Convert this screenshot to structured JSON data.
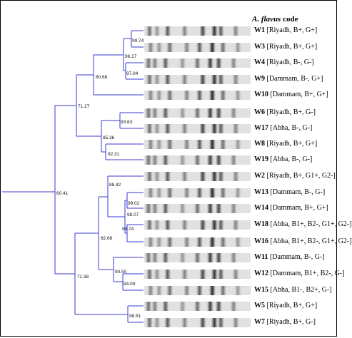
{
  "header": {
    "species": "A. flavus",
    "rest": "code"
  },
  "rows": [
    {
      "code": "W1",
      "desc": "[Riyadh, B+, G+]"
    },
    {
      "code": "W3",
      "desc": "[Riyadh, B+, G+]"
    },
    {
      "code": "W4",
      "desc": "[Riyadh, B-, G-]"
    },
    {
      "code": "W9",
      "desc": "[Dammam, B-, G+]"
    },
    {
      "code": "W10",
      "desc": "[Dammam, B+, G+]"
    },
    {
      "code": "W6",
      "desc": "[Riyadh, B+, G-]"
    },
    {
      "code": "W17",
      "desc": "[Abha, B-, G-]"
    },
    {
      "code": "W8",
      "desc": "[Riyadh, B+, G+]"
    },
    {
      "code": "W19",
      "desc": "[Abha, B-, G-]"
    },
    {
      "code": "W2",
      "desc": "[Riyadh, B+, G1+, G2-]"
    },
    {
      "code": "W13",
      "desc": "[Dammam, B-, G-]"
    },
    {
      "code": "W14",
      "desc": "[Dammam, B+, G+]"
    },
    {
      "code": "W18",
      "desc": "[Abha, B1+, B2-, G1+, G2-]"
    },
    {
      "code": "W16",
      "desc": "[Abha, B1+, B2-, G1+, G2-]"
    },
    {
      "code": "W11",
      "desc": "[Dammam, B-, G-]"
    },
    {
      "code": "W12",
      "desc": "[Dammam, B1+, B2-, G-]"
    },
    {
      "code": "W15",
      "desc": "[Abha, B1-, B2+, G-]"
    },
    {
      "code": "W5",
      "desc": "[Riyadh, B+, G+]"
    },
    {
      "code": "W7",
      "desc": "[Riyadh, B+, G-]"
    }
  ],
  "node_values": [
    "99.74",
    "96.17",
    "97.04",
    "80.68",
    "71.27",
    "93.63",
    "85.36",
    "92.31",
    "60.41",
    "88.42",
    "99.02",
    "98.07",
    "94.74",
    "82.68",
    "90.50",
    "94.09",
    "71.38",
    "98.51"
  ],
  "colors": {
    "tree": "#3a3ad6",
    "gel_background": "#e6e6e6"
  }
}
